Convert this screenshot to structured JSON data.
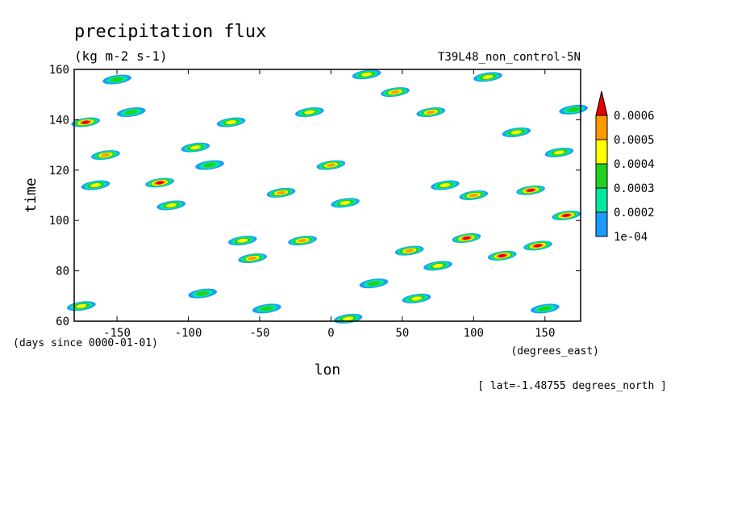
{
  "chart_data": {
    "type": "heatmap",
    "title": "precipitation flux",
    "units": "(kg m-2 s-1)",
    "experiment": "T39L48_non_control-5N",
    "xlabel": "lon",
    "x_units": "(degrees_east)",
    "ylabel": "time",
    "y_units": "(days since 0000-01-01)",
    "subtitle": "[ lat=-1.48755 degrees_north ]",
    "xlim": [
      -180,
      175
    ],
    "ylim": [
      60,
      160
    ],
    "x_ticks": [
      -150,
      -100,
      -50,
      0,
      50,
      100,
      150
    ],
    "x_tick_labels": [
      "-150",
      "-100",
      "-50",
      "0",
      "50",
      "100",
      "150"
    ],
    "y_ticks": [
      60,
      80,
      100,
      120,
      140,
      160
    ],
    "y_tick_labels": [
      "60",
      "80",
      "100",
      "120",
      "140",
      "160"
    ],
    "colorbar": {
      "levels": [
        0.0001,
        0.0002,
        0.0003,
        0.0004,
        0.0005,
        0.0006
      ],
      "labels": [
        "1e-04",
        "0.0002",
        "0.0003",
        "0.0004",
        "0.0005",
        "0.0006"
      ],
      "colors": [
        "#1a9cff",
        "#00e8a0",
        "#22d022",
        "#ffff00",
        "#ff9900",
        "#e80000"
      ]
    },
    "grid": false,
    "cells": [
      {
        "lon": -172,
        "time": 139,
        "level": 5
      },
      {
        "lon": -165,
        "time": 114,
        "level": 3
      },
      {
        "lon": -158,
        "time": 126,
        "level": 4
      },
      {
        "lon": -150,
        "time": 156,
        "level": 2
      },
      {
        "lon": -140,
        "time": 143,
        "level": 2
      },
      {
        "lon": -120,
        "time": 115,
        "level": 5
      },
      {
        "lon": -112,
        "time": 106,
        "level": 3
      },
      {
        "lon": -95,
        "time": 129,
        "level": 3
      },
      {
        "lon": -85,
        "time": 122,
        "level": 2
      },
      {
        "lon": -70,
        "time": 139,
        "level": 3
      },
      {
        "lon": -62,
        "time": 92,
        "level": 3
      },
      {
        "lon": -55,
        "time": 85,
        "level": 4
      },
      {
        "lon": -45,
        "time": 65,
        "level": 2
      },
      {
        "lon": -35,
        "time": 111,
        "level": 4
      },
      {
        "lon": -20,
        "time": 92,
        "level": 4
      },
      {
        "lon": -15,
        "time": 143,
        "level": 3
      },
      {
        "lon": 0,
        "time": 122,
        "level": 4
      },
      {
        "lon": 10,
        "time": 107,
        "level": 3
      },
      {
        "lon": 12,
        "time": 61,
        "level": 3
      },
      {
        "lon": 25,
        "time": 158,
        "level": 3
      },
      {
        "lon": 30,
        "time": 75,
        "level": 2
      },
      {
        "lon": 45,
        "time": 151,
        "level": 4
      },
      {
        "lon": 55,
        "time": 88,
        "level": 4
      },
      {
        "lon": 70,
        "time": 143,
        "level": 4
      },
      {
        "lon": 75,
        "time": 82,
        "level": 3
      },
      {
        "lon": 80,
        "time": 114,
        "level": 3
      },
      {
        "lon": 95,
        "time": 93,
        "level": 5
      },
      {
        "lon": 100,
        "time": 110,
        "level": 4
      },
      {
        "lon": 110,
        "time": 157,
        "level": 3
      },
      {
        "lon": 120,
        "time": 86,
        "level": 5
      },
      {
        "lon": 130,
        "time": 135,
        "level": 3
      },
      {
        "lon": 140,
        "time": 112,
        "level": 5
      },
      {
        "lon": 145,
        "time": 90,
        "level": 5
      },
      {
        "lon": 150,
        "time": 65,
        "level": 2
      },
      {
        "lon": 160,
        "time": 127,
        "level": 3
      },
      {
        "lon": 165,
        "time": 102,
        "level": 5
      },
      {
        "lon": 170,
        "time": 144,
        "level": 2
      },
      {
        "lon": -175,
        "time": 66,
        "level": 3
      },
      {
        "lon": -90,
        "time": 71,
        "level": 2
      },
      {
        "lon": 60,
        "time": 69,
        "level": 3
      }
    ]
  }
}
